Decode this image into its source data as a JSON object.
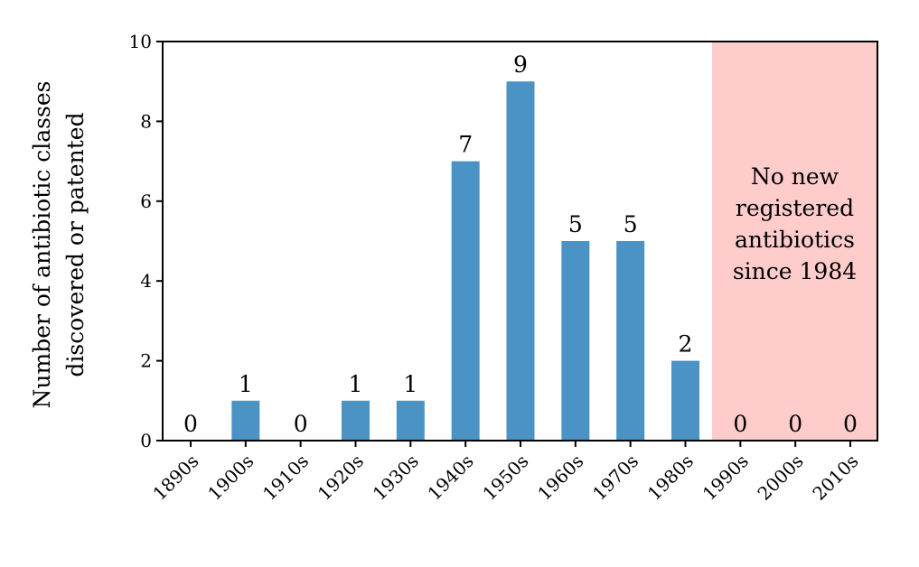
{
  "chart_data": {
    "type": "bar",
    "categories": [
      "1890s",
      "1900s",
      "1910s",
      "1920s",
      "1930s",
      "1940s",
      "1950s",
      "1960s",
      "1970s",
      "1980s",
      "1990s",
      "2000s",
      "2010s"
    ],
    "values": [
      0,
      1,
      0,
      1,
      1,
      7,
      9,
      5,
      5,
      2,
      0,
      0,
      0
    ],
    "title": "",
    "xlabel": "",
    "ylabel": [
      "Number of antibiotic classes",
      "discovered or patented"
    ],
    "ylim": [
      0,
      10
    ],
    "yticks": [
      0,
      2,
      4,
      6,
      8,
      10
    ],
    "grid": false,
    "bar_color": "#4b93c5",
    "highlight": {
      "from_category": "1990s",
      "to_category": "2010s",
      "color": "#ffcccc",
      "text": [
        "No new",
        "registered",
        "antibiotics",
        "since 1984"
      ]
    }
  }
}
